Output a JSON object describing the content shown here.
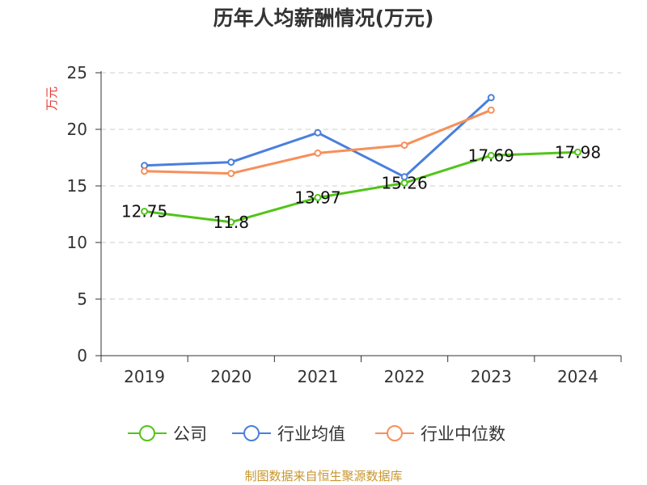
{
  "chart_data": {
    "type": "line",
    "title": "历年人均薪酬情况(万元)",
    "ylabel": "万元",
    "xlabel": "",
    "categories": [
      "2019",
      "2020",
      "2021",
      "2022",
      "2023",
      "2024"
    ],
    "yticks": [
      "0",
      "5",
      "10",
      "15",
      "20",
      "25"
    ],
    "ylim": [
      0,
      25
    ],
    "grid": true,
    "legend_position": "bottom",
    "series": [
      {
        "name": "公司",
        "color": "#52c41a",
        "values": [
          12.75,
          11.8,
          13.97,
          15.26,
          17.69,
          17.98
        ],
        "labels": [
          "12.75",
          "11.8",
          "13.97",
          "15.26",
          "17.69",
          "17.98"
        ]
      },
      {
        "name": "行业均值",
        "color": "#4a7fdc",
        "values": [
          16.8,
          17.1,
          19.7,
          15.8,
          22.8,
          null
        ]
      },
      {
        "name": "行业中位数",
        "color": "#f78f5a",
        "values": [
          16.3,
          16.1,
          17.9,
          18.6,
          21.7,
          null
        ]
      }
    ]
  },
  "source": "制图数据来自恒生聚源数据库"
}
